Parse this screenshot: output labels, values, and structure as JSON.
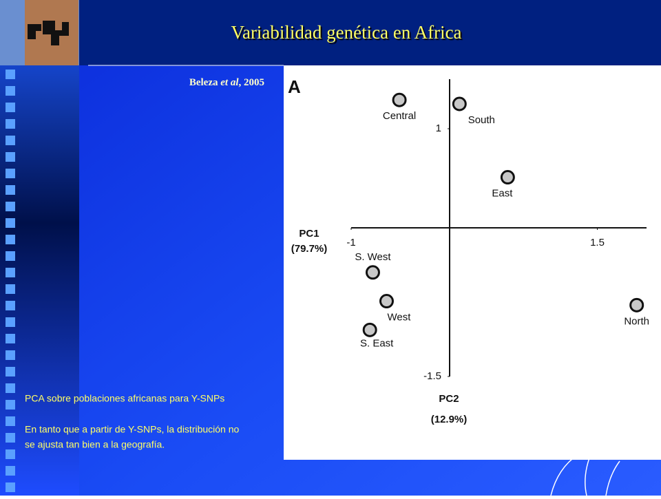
{
  "slide": {
    "title": "Variabilidad genética en Africa",
    "citation": [
      "Beleza ",
      "et al",
      ", 2005"
    ],
    "notes": [
      "PCA sobre poblaciones africanas para Y-SNPs",
      "En tanto que a partir de Y-SNPs, la distribución no",
      "se ajusta tan bien a la geografía."
    ]
  },
  "chart_data": {
    "type": "scatter",
    "panel": "A",
    "labels": [
      "Central",
      "South",
      "East",
      "S. West",
      "West",
      "S. East",
      "North"
    ],
    "x": [
      -0.51,
      0.1,
      0.59,
      -0.78,
      -0.64,
      -0.81,
      1.9
    ],
    "values": [
      1.29,
      1.25,
      0.51,
      -0.45,
      -0.74,
      -1.03,
      -0.78
    ],
    "xlabel": [
      "PC1",
      "(79.7%)"
    ],
    "ylabel": [
      "PC2",
      "(12.9%)"
    ],
    "xlim": [
      -1,
      2
    ],
    "ylim": [
      -1.5,
      1.5
    ],
    "xticks": [
      -1,
      1.5
    ],
    "yticks": [
      1,
      -1.5
    ],
    "color": "#c8c8c8"
  }
}
